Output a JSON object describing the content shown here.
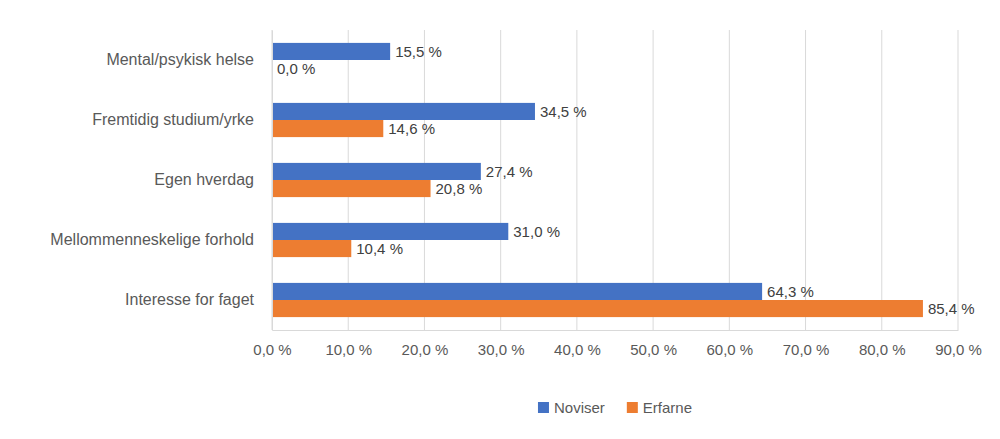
{
  "chart_data": {
    "type": "bar",
    "orientation": "horizontal",
    "categories": [
      "Mental/psykisk helse",
      "Fremtidig studium/yrke",
      "Egen hverdag",
      "Mellommenneskelige forhold",
      "Interesse for faget"
    ],
    "series": [
      {
        "name": "Noviser",
        "color": "#4472c4",
        "values": [
          15.5,
          34.5,
          27.4,
          31.0,
          64.3
        ],
        "value_labels": [
          "15,5 %",
          "34,5 %",
          "27,4 %",
          "31,0 %",
          "64,3 %"
        ]
      },
      {
        "name": "Erfarne",
        "color": "#ed7d31",
        "values": [
          0.0,
          14.6,
          20.8,
          10.4,
          85.4
        ],
        "value_labels": [
          "0,0 %",
          "14,6 %",
          "20,8 %",
          "10,4 %",
          "85,4 %"
        ]
      }
    ],
    "xlim": [
      0,
      90
    ],
    "xticks": [
      {
        "value": 0,
        "label": "0,0 %"
      },
      {
        "value": 10,
        "label": "10,0 %"
      },
      {
        "value": 20,
        "label": "20,0 %"
      },
      {
        "value": 30,
        "label": "30,0 %"
      },
      {
        "value": 40,
        "label": "40,0 %"
      },
      {
        "value": 50,
        "label": "50,0 %"
      },
      {
        "value": 60,
        "label": "60,0 %"
      },
      {
        "value": 70,
        "label": "70,0 %"
      },
      {
        "value": 80,
        "label": "80,0 %"
      },
      {
        "value": 90,
        "label": "90,0 %"
      }
    ],
    "grid": true,
    "data_labels": true,
    "legend": "bottom"
  }
}
